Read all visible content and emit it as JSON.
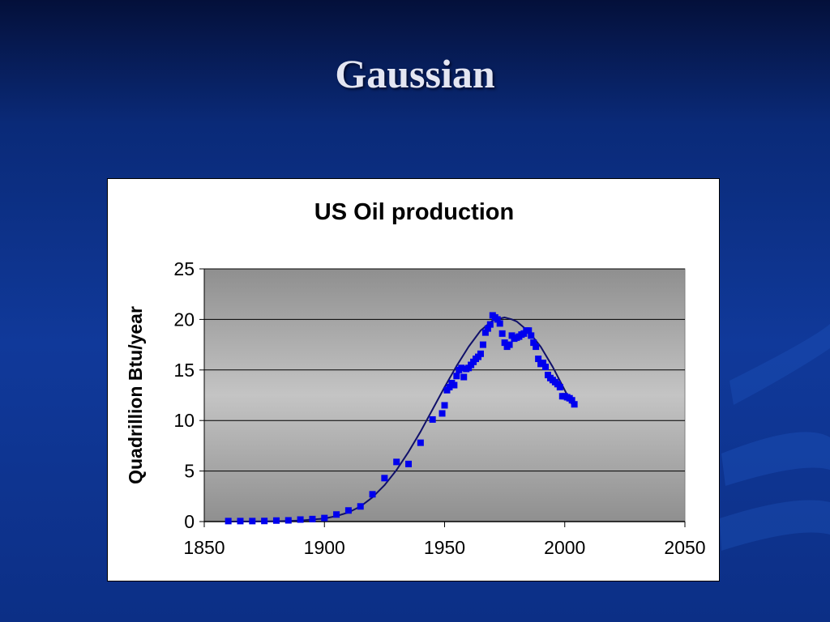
{
  "slide": {
    "title": "Gaussian",
    "colors": {
      "background": "#0c2f86",
      "title": "#e4e6f2"
    }
  },
  "chart_data": {
    "type": "scatter",
    "title": "US Oil production",
    "xlabel": "",
    "ylabel": "Quadrillion Btu/year",
    "xlim": [
      1850,
      2050
    ],
    "ylim": [
      0,
      25
    ],
    "xticks": [
      1850,
      1900,
      1950,
      2000,
      2050
    ],
    "yticks": [
      0,
      5,
      10,
      15,
      20,
      25
    ],
    "grid": "horizontal",
    "legend": "none",
    "series": [
      {
        "name": "",
        "kind": "points",
        "marker": "square",
        "color": "#0000ee",
        "x": [
          1860,
          1865,
          1870,
          1875,
          1880,
          1885,
          1890,
          1895,
          1900,
          1905,
          1910,
          1915,
          1920,
          1925,
          1930,
          1935,
          1940,
          1945,
          1949,
          1950,
          1951,
          1952,
          1953,
          1954,
          1955,
          1956,
          1957,
          1958,
          1959,
          1960,
          1961,
          1962,
          1963,
          1964,
          1965,
          1966,
          1967,
          1968,
          1969,
          1970,
          1971,
          1972,
          1973,
          1974,
          1975,
          1976,
          1977,
          1978,
          1979,
          1980,
          1981,
          1982,
          1983,
          1984,
          1985,
          1986,
          1987,
          1988,
          1989,
          1990,
          1991,
          1992,
          1993,
          1994,
          1995,
          1996,
          1997,
          1998,
          1999,
          2000,
          2001,
          2002,
          2003,
          2004
        ],
        "y": [
          0.05,
          0.05,
          0.05,
          0.06,
          0.1,
          0.12,
          0.2,
          0.25,
          0.35,
          0.7,
          1.1,
          1.5,
          2.7,
          4.3,
          5.9,
          5.7,
          7.8,
          10.1,
          10.7,
          11.5,
          13.0,
          13.3,
          13.7,
          13.5,
          14.4,
          15.0,
          15.2,
          14.3,
          15.1,
          15.2,
          15.5,
          15.8,
          16.1,
          16.3,
          16.6,
          17.5,
          18.7,
          19.1,
          19.5,
          20.4,
          20.2,
          20.0,
          19.6,
          18.6,
          17.7,
          17.3,
          17.5,
          18.4,
          18.1,
          18.2,
          18.3,
          18.5,
          18.6,
          18.9,
          18.9,
          18.4,
          17.7,
          17.3,
          16.1,
          15.6,
          15.7,
          15.3,
          14.5,
          14.2,
          14.0,
          13.8,
          13.6,
          13.3,
          12.4,
          12.4,
          12.3,
          12.2,
          12.0,
          11.6
        ]
      },
      {
        "name": "",
        "kind": "line",
        "color": "#10106a",
        "x": [
          1860,
          1870,
          1880,
          1890,
          1900,
          1905,
          1910,
          1915,
          1920,
          1925,
          1930,
          1935,
          1940,
          1945,
          1950,
          1955,
          1960,
          1965,
          1970,
          1975,
          1978,
          1980,
          1985,
          1990,
          1995,
          2000,
          2003
        ],
        "y": [
          0.0,
          0.01,
          0.03,
          0.1,
          0.3,
          0.55,
          0.9,
          1.5,
          2.4,
          3.6,
          5.1,
          6.9,
          8.9,
          11.1,
          13.3,
          15.4,
          17.3,
          18.9,
          19.9,
          20.2,
          20.0,
          19.8,
          18.8,
          17.3,
          15.3,
          13.0,
          11.6
        ]
      }
    ]
  }
}
